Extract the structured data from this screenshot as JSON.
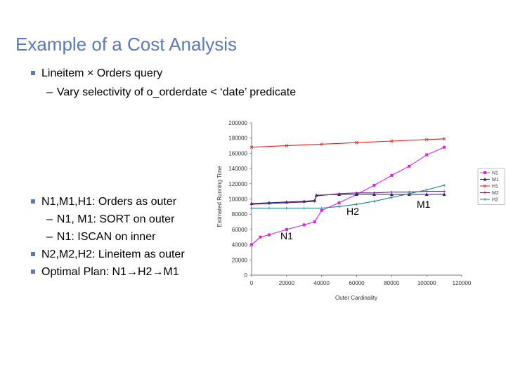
{
  "title": "Example of a Cost Analysis",
  "bullets_top": [
    {
      "level": 1,
      "text": "Lineitem × Orders query"
    },
    {
      "level": 2,
      "text": "Vary selectivity of o_orderdate < ‘date’ predicate"
    }
  ],
  "bullets_bottom": [
    {
      "level": 1,
      "text": "N1,M1,H1: Orders as outer"
    },
    {
      "level": 2,
      "text": "N1, M1: SORT on outer"
    },
    {
      "level": 2,
      "text": "N1: ISCAN on inner"
    },
    {
      "level": 1,
      "text": "N2,M2,H2: Lineitem as outer"
    },
    {
      "level": 1,
      "text_before": "Optimal Plan: N1",
      "text_mid": "H2",
      "text_after": "M1"
    }
  ],
  "chart_data": {
    "type": "line",
    "xlabel": "Outer Cardinality",
    "ylabel": "Estimated Running Time",
    "xlim": [
      0,
      120000
    ],
    "ylim": [
      0,
      200000
    ],
    "xticks": [
      "0",
      "20000",
      "40000",
      "60000",
      "80000",
      "100000",
      "120000"
    ],
    "yticks": [
      "0",
      "20000",
      "40000",
      "60000",
      "80000",
      "100000",
      "120000",
      "140000",
      "160000",
      "180000",
      "200000"
    ],
    "legend_position": "right",
    "annotations": [
      "H2",
      "M1",
      "N1"
    ],
    "series": [
      {
        "name": "N1",
        "color": "#e020e0",
        "marker": "square",
        "x": [
          0,
          5000,
          10000,
          20000,
          30000,
          36000,
          40000,
          50000,
          60000,
          70000,
          80000,
          90000,
          100000,
          110000
        ],
        "y": [
          40000,
          50000,
          53000,
          60000,
          66000,
          70000,
          85000,
          95000,
          106000,
          118000,
          131000,
          143000,
          158000,
          168000
        ]
      },
      {
        "name": "M1",
        "color": "#202080",
        "marker": "triangle",
        "x": [
          0,
          10000,
          20000,
          30000,
          36000,
          37000,
          50000,
          60000,
          70000,
          80000,
          90000,
          100000,
          110000
        ],
        "y": [
          94000,
          95000,
          96000,
          97000,
          98000,
          105000,
          106000,
          106000,
          106000,
          106000,
          106000,
          106000,
          106000
        ]
      },
      {
        "name": "H1",
        "color": "#e02020",
        "marker": "x",
        "x": [
          0,
          20000,
          40000,
          60000,
          80000,
          100000,
          110000
        ],
        "y": [
          168000,
          170000,
          172000,
          174000,
          176000,
          178000,
          179000
        ]
      },
      {
        "name": "M2",
        "color": "#702060",
        "marker": "plus",
        "x": [
          0,
          10000,
          20000,
          30000,
          36000,
          37000,
          50000,
          60000,
          70000,
          80000,
          90000,
          100000,
          110000
        ],
        "y": [
          93000,
          94000,
          95000,
          96000,
          97000,
          104000,
          107000,
          108000,
          108000,
          109000,
          109000,
          110000,
          110000
        ]
      },
      {
        "name": "H2",
        "color": "#208080",
        "marker": "plus",
        "x": [
          0,
          10000,
          20000,
          30000,
          40000,
          50000,
          60000,
          70000,
          80000,
          90000,
          100000,
          110000
        ],
        "y": [
          88000,
          88000,
          88000,
          88000,
          88000,
          90000,
          93000,
          97000,
          102000,
          107000,
          112000,
          118000
        ]
      }
    ]
  }
}
